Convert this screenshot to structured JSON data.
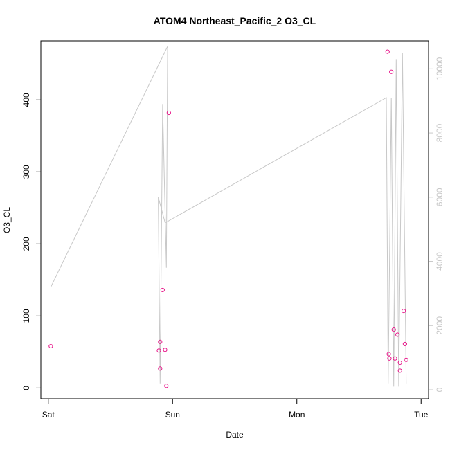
{
  "chart_data": {
    "type": "scatter",
    "title": "ATOM4 Northeast_Pacific_2 O3_CL",
    "xlabel": "Date",
    "ylabel": "O3_CL",
    "x_axis": {
      "type": "time",
      "range_days": [
        -0.06,
        3.06
      ],
      "ticks": [
        {
          "label": "Sat",
          "value": 0
        },
        {
          "label": "Sun",
          "value": 1
        },
        {
          "label": "Mon",
          "value": 2
        },
        {
          "label": "Tue",
          "value": 3
        }
      ]
    },
    "y_axis": {
      "range": [
        -15,
        482
      ],
      "ticks": [
        0,
        100,
        200,
        300,
        400
      ]
    },
    "y2_axis": {
      "range": [
        -280,
        10870
      ],
      "ticks": [
        0,
        2000,
        4000,
        6000,
        8000,
        10000
      ],
      "color": "#c8c8c8"
    },
    "series": [
      {
        "style": "points",
        "color": "#e8178a",
        "axis": "left",
        "points": [
          [
            0.02,
            58
          ],
          [
            0.89,
            52
          ],
          [
            0.9,
            64
          ],
          [
            0.9,
            27
          ],
          [
            0.92,
            136
          ],
          [
            0.94,
            53
          ],
          [
            0.95,
            3
          ],
          [
            0.97,
            382
          ],
          [
            2.73,
            467
          ],
          [
            2.74,
            47
          ],
          [
            2.745,
            41
          ],
          [
            2.76,
            439
          ],
          [
            2.78,
            81
          ],
          [
            2.79,
            41
          ],
          [
            2.81,
            74
          ],
          [
            2.83,
            35
          ],
          [
            2.83,
            24
          ],
          [
            2.86,
            107
          ],
          [
            2.87,
            61
          ],
          [
            2.88,
            39
          ]
        ]
      },
      {
        "style": "line",
        "color": "#c8c8c8",
        "axis": "right",
        "points": [
          [
            0.02,
            3200
          ],
          [
            0.96,
            10700
          ],
          [
            0.95,
            3800
          ],
          [
            0.92,
            8900
          ],
          [
            0.9,
            200
          ],
          [
            0.885,
            6000
          ],
          [
            0.94,
            5200
          ],
          [
            2.72,
            9100
          ],
          [
            2.735,
            200
          ],
          [
            2.76,
            9100
          ],
          [
            2.78,
            100
          ],
          [
            2.8,
            10300
          ],
          [
            2.82,
            100
          ],
          [
            2.85,
            10500
          ],
          [
            2.88,
            200
          ]
        ]
      }
    ]
  }
}
